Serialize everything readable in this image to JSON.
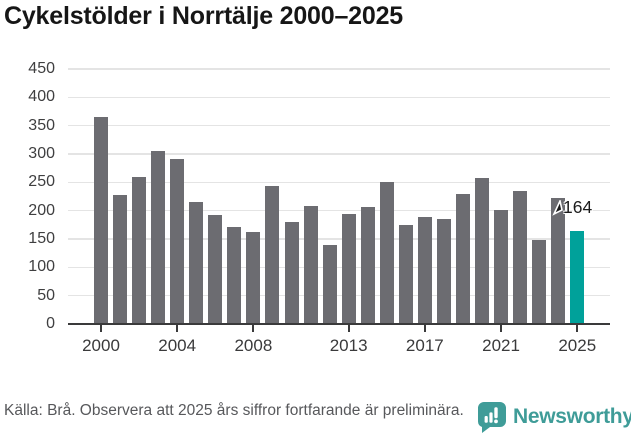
{
  "title": "Cykelstölder i Norrtälje 2000–2025",
  "chart_data": {
    "type": "bar",
    "title": "Cykelstölder i Norrtälje 2000–2025",
    "x": [
      2000,
      2001,
      2002,
      2003,
      2004,
      2005,
      2006,
      2007,
      2008,
      2009,
      2010,
      2011,
      2012,
      2013,
      2014,
      2015,
      2016,
      2017,
      2018,
      2019,
      2020,
      2021,
      2022,
      2023,
      2024,
      2025
    ],
    "values": [
      365,
      228,
      259,
      305,
      291,
      216,
      192,
      171,
      163,
      243,
      180,
      209,
      139,
      194,
      206,
      250,
      174,
      189,
      185,
      230,
      258,
      201,
      235,
      149,
      222,
      164
    ],
    "ylim": [
      0,
      450
    ],
    "ytick_step": 50,
    "xticks": [
      2000,
      2004,
      2008,
      2013,
      2017,
      2021,
      2025
    ],
    "grid": true,
    "legend": "none",
    "bar_color": "#6c6c71",
    "highlight": {
      "year": 2025,
      "value": 164,
      "label": "164",
      "color": "#00a19a"
    }
  },
  "annotation": {
    "label": "164"
  },
  "footer": {
    "source": "Källa: Brå. Observera att 2025 års siffror fortfarande är preliminära."
  },
  "branding": {
    "name": "Newsworthy",
    "color": "#3f9c98",
    "icon": "newsworthy-bar-chart-bubble-icon"
  }
}
